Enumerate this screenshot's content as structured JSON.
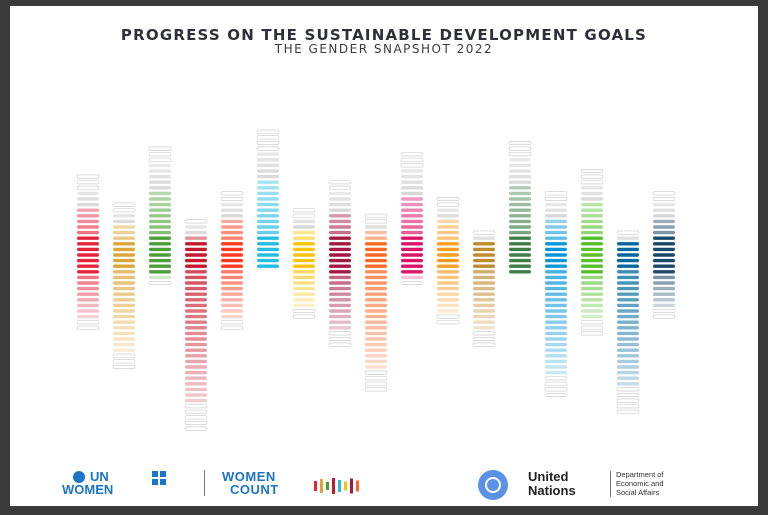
{
  "cover": {
    "title": "PROGRESS ON THE SUSTAINABLE DEVELOPMENT GOALS",
    "subtitle": "THE GENDER SNAPSHOT 2022"
  },
  "logos": {
    "un_women_line1": "UN",
    "un_women_line2": "WOMEN",
    "women_count_line1": "WOMEN",
    "women_count_line2": "COUNT",
    "un_line1": "United",
    "un_line2": "Nations",
    "dept_line1": "Department of",
    "dept_line2": "Economic and",
    "dept_line3": "Social Affairs"
  },
  "graphic": {
    "goal_colors": [
      "#e5243b",
      "#dda63a",
      "#4c9f38",
      "#c5192d",
      "#ff3a21",
      "#26bde2",
      "#fcc30b",
      "#a21942",
      "#fd6925",
      "#dd1367",
      "#fd9d24",
      "#bf8b2e",
      "#3f7e44",
      "#0a97d9",
      "#56c02b",
      "#00689d",
      "#19486a"
    ],
    "columns": [
      {
        "top": 14,
        "bottom": 13,
        "solid": 4
      },
      {
        "top": 9,
        "bottom": 20,
        "solid": 3
      },
      {
        "top": 19,
        "bottom": 5,
        "solid": 4
      },
      {
        "top": 6,
        "bottom": 31,
        "solid": 3
      },
      {
        "top": 11,
        "bottom": 13,
        "solid": 3
      },
      {
        "top": 22,
        "bottom": 2,
        "solid": 4
      },
      {
        "top": 8,
        "bottom": 11,
        "solid": 3
      },
      {
        "top": 13,
        "bottom": 16,
        "solid": 4
      },
      {
        "top": 7,
        "bottom": 24,
        "solid": 3
      },
      {
        "top": 18,
        "bottom": 5,
        "solid": 4
      },
      {
        "top": 10,
        "bottom": 12,
        "solid": 3
      },
      {
        "top": 4,
        "bottom": 16,
        "solid": 3
      },
      {
        "top": 20,
        "bottom": 3,
        "solid": 4
      },
      {
        "top": 11,
        "bottom": 25,
        "solid": 3
      },
      {
        "top": 15,
        "bottom": 14,
        "solid": 4
      },
      {
        "top": 4,
        "bottom": 28,
        "solid": 3
      },
      {
        "top": 11,
        "bottom": 11,
        "solid": 4
      }
    ]
  }
}
